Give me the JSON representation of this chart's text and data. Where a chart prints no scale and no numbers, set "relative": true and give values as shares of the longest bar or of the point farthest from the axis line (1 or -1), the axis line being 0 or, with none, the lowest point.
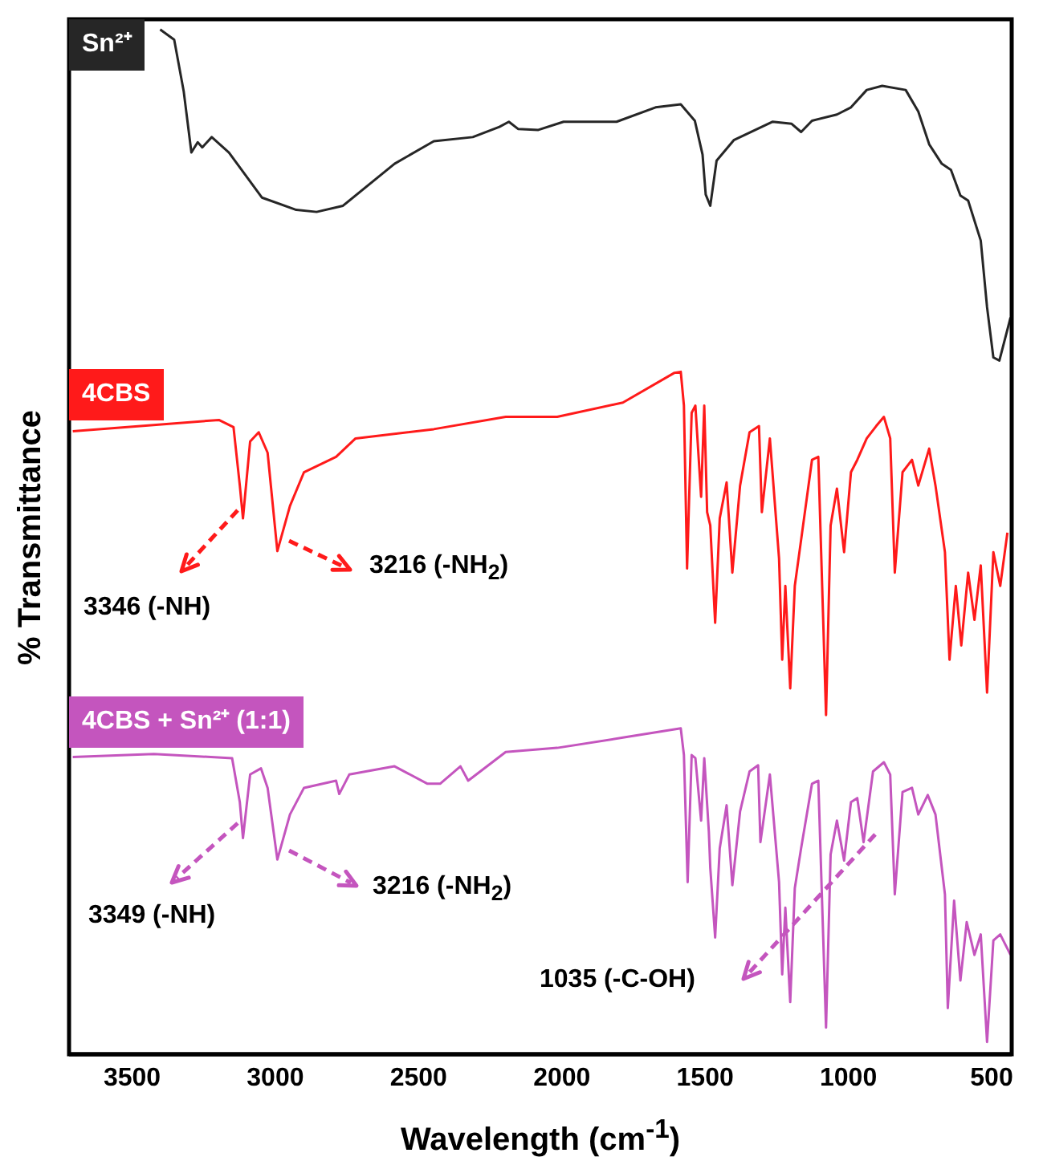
{
  "chart_data": {
    "type": "line",
    "relative": true,
    "xlabel": "Wavelength (cm$^{-1}$)",
    "ylabel": "% Transmittance",
    "xlim": [
      3720,
      430
    ],
    "xticks": [
      3500,
      3000,
      2500,
      2000,
      1500,
      1000,
      500
    ],
    "series": [
      {
        "name": "Sn²⁺",
        "color": "#262626",
        "x": [
          3402,
          3353,
          3320,
          3293,
          3271,
          3255,
          3222,
          3162,
          3047,
          2927,
          2856,
          2764,
          2584,
          2447,
          2311,
          2218,
          2185,
          2153,
          2082,
          1994,
          1809,
          1673,
          1585,
          1536,
          1509,
          1498,
          1482,
          1460,
          1400,
          1264,
          1198,
          1165,
          1127,
          1040,
          991,
          936,
          882,
          800,
          756,
          718,
          674,
          642,
          609,
          582,
          538,
          516,
          494,
          473,
          434
        ],
        "values": [
          1.0,
          0.99,
          0.94,
          0.88,
          0.89,
          0.885,
          0.895,
          0.88,
          0.836,
          0.824,
          0.822,
          0.828,
          0.869,
          0.891,
          0.895,
          0.905,
          0.91,
          0.903,
          0.902,
          0.91,
          0.91,
          0.924,
          0.927,
          0.911,
          0.878,
          0.839,
          0.828,
          0.872,
          0.892,
          0.91,
          0.908,
          0.9,
          0.911,
          0.917,
          0.924,
          0.941,
          0.945,
          0.941,
          0.92,
          0.888,
          0.869,
          0.863,
          0.838,
          0.833,
          0.794,
          0.729,
          0.68,
          0.677,
          0.719
        ]
      },
      {
        "name": "4CBS",
        "color": "#ff1a1a",
        "x": [
          3707,
          3197,
          3146,
          3124,
          3113,
          3088,
          3058,
          3027,
          2993,
          2949,
          2900,
          2788,
          2720,
          2447,
          2196,
          2016,
          1787,
          1607,
          1585,
          1574,
          1563,
          1547,
          1534,
          1514,
          1503,
          1493,
          1482,
          1465,
          1449,
          1425,
          1405,
          1378,
          1345,
          1312,
          1302,
          1274,
          1242,
          1231,
          1220,
          1203,
          1187,
          1165,
          1127,
          1105,
          1078,
          1062,
          1040,
          1015,
          991,
          969,
          936,
          903,
          876,
          854,
          838,
          811,
          778,
          756,
          718,
          696,
          663,
          647,
          625,
          606,
          582,
          560,
          538,
          516,
          494,
          470,
          445
        ],
        "values": [
          0.608,
          0.619,
          0.612,
          0.555,
          0.523,
          0.598,
          0.607,
          0.587,
          0.491,
          0.535,
          0.568,
          0.583,
          0.601,
          0.61,
          0.622,
          0.622,
          0.636,
          0.665,
          0.666,
          0.633,
          0.474,
          0.626,
          0.633,
          0.544,
          0.633,
          0.529,
          0.516,
          0.421,
          0.523,
          0.558,
          0.47,
          0.555,
          0.607,
          0.613,
          0.529,
          0.601,
          0.484,
          0.385,
          0.457,
          0.357,
          0.457,
          0.502,
          0.58,
          0.583,
          0.331,
          0.516,
          0.552,
          0.49,
          0.568,
          0.58,
          0.601,
          0.613,
          0.622,
          0.601,
          0.47,
          0.568,
          0.58,
          0.555,
          0.591,
          0.555,
          0.49,
          0.385,
          0.457,
          0.399,
          0.47,
          0.424,
          0.477,
          0.353,
          0.49,
          0.457,
          0.509
        ]
      },
      {
        "name": "4CBS + Sn²⁺ (1:1)",
        "color": "#c455be",
        "x": [
          3707,
          3424,
          3151,
          3124,
          3113,
          3088,
          3050,
          3027,
          2993,
          2949,
          2900,
          2788,
          2777,
          2742,
          2584,
          2469,
          2425,
          2354,
          2327,
          2196,
          2016,
          1787,
          1585,
          1574,
          1561,
          1547,
          1534,
          1514,
          1503,
          1487,
          1482,
          1465,
          1449,
          1425,
          1405,
          1378,
          1345,
          1315,
          1307,
          1274,
          1242,
          1231,
          1220,
          1203,
          1187,
          1165,
          1127,
          1105,
          1078,
          1062,
          1040,
          1015,
          991,
          969,
          947,
          914,
          876,
          854,
          838,
          811,
          778,
          756,
          723,
          696,
          663,
          653,
          631,
          609,
          587,
          560,
          538,
          516,
          494,
          470,
          434
        ],
        "values": [
          0.29,
          0.293,
          0.289,
          0.246,
          0.211,
          0.273,
          0.279,
          0.26,
          0.19,
          0.234,
          0.26,
          0.267,
          0.254,
          0.273,
          0.281,
          0.264,
          0.264,
          0.281,
          0.267,
          0.295,
          0.299,
          0.309,
          0.318,
          0.292,
          0.168,
          0.292,
          0.289,
          0.228,
          0.289,
          0.217,
          0.182,
          0.114,
          0.201,
          0.243,
          0.165,
          0.237,
          0.276,
          0.282,
          0.207,
          0.273,
          0.168,
          0.078,
          0.143,
          0.051,
          0.162,
          0.201,
          0.264,
          0.267,
          0.026,
          0.195,
          0.228,
          0.189,
          0.246,
          0.25,
          0.207,
          0.276,
          0.285,
          0.273,
          0.156,
          0.256,
          0.26,
          0.234,
          0.253,
          0.234,
          0.156,
          0.045,
          0.15,
          0.072,
          0.129,
          0.097,
          0.117,
          0.012,
          0.111,
          0.117,
          0.097
        ]
      }
    ],
    "annotations": [
      "3346 (-NH)",
      "3216 (-NH$_{2}$)",
      "3349 (-NH)",
      "3216 (-NH$_{2}$)",
      "1035 (-C-OH)"
    ]
  }
}
